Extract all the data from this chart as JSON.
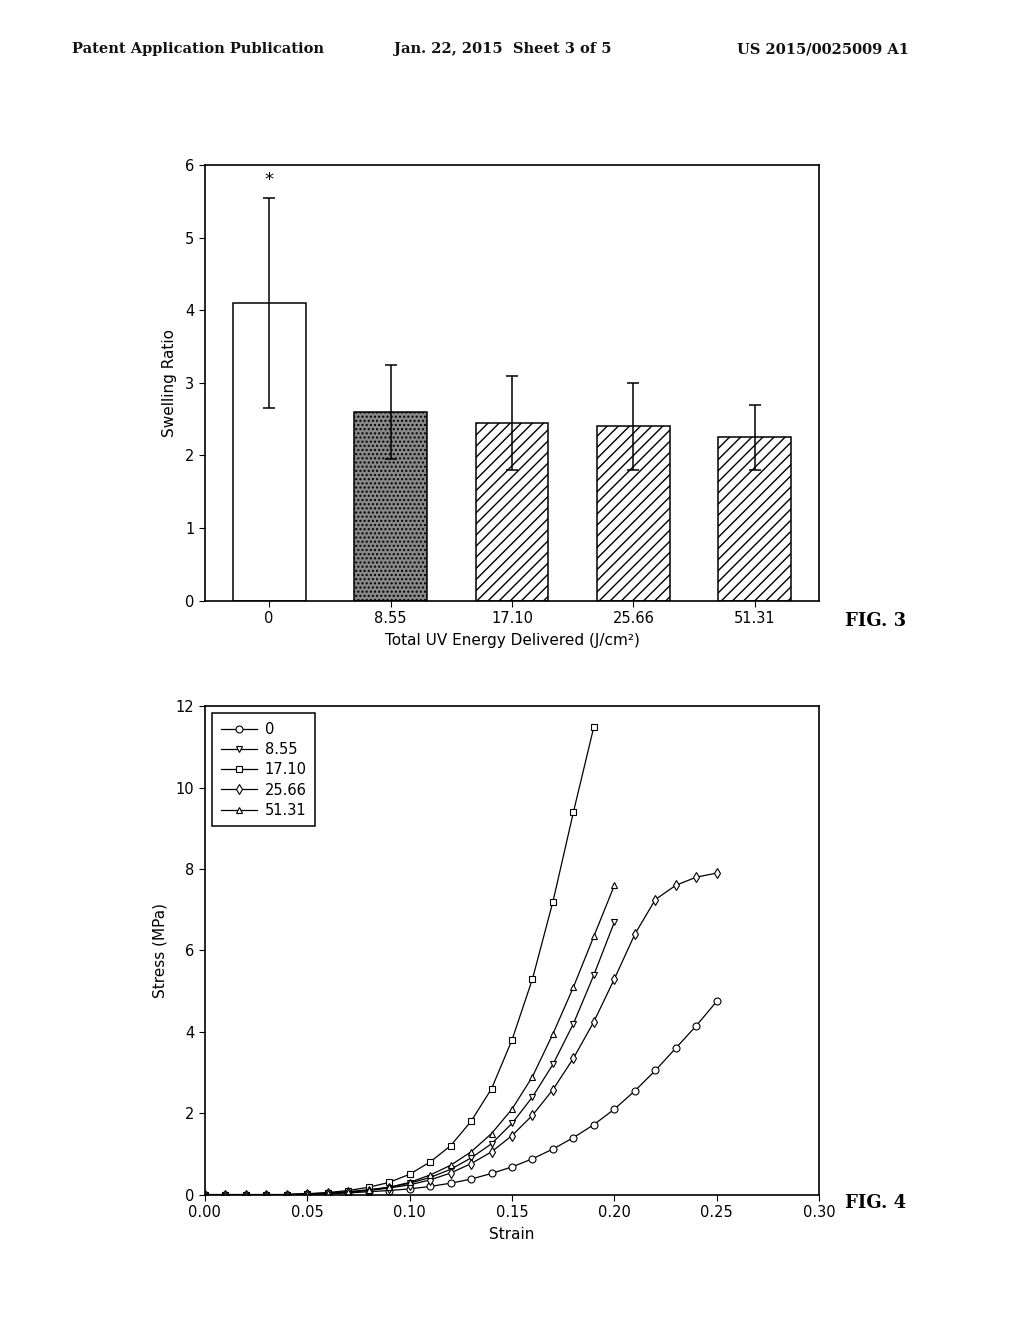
{
  "header_left": "Patent Application Publication",
  "header_center": "Jan. 22, 2015  Sheet 3 of 5",
  "header_right": "US 2015/0025009 A1",
  "fig3": {
    "title": "FIG. 3",
    "xlabel": "Total UV Energy Delivered (J/cm²)",
    "ylabel": "Swelling Ratio",
    "categories": [
      "0",
      "8.55",
      "17.10",
      "25.66",
      "51.31"
    ],
    "values": [
      4.1,
      2.6,
      2.45,
      2.4,
      2.25
    ],
    "errors": [
      1.45,
      0.65,
      0.65,
      0.6,
      0.45
    ],
    "ylim": [
      0,
      6
    ],
    "yticks": [
      0,
      1,
      2,
      3,
      4,
      5,
      6
    ],
    "bar_width": 0.6,
    "significance_star": "*"
  },
  "fig4": {
    "title": "FIG. 4",
    "xlabel": "Strain",
    "ylabel": "Stress (MPa)",
    "ylim": [
      0,
      12
    ],
    "xlim": [
      0.0,
      0.3
    ],
    "yticks": [
      0,
      2,
      4,
      6,
      8,
      10,
      12
    ],
    "xticks": [
      0.0,
      0.05,
      0.1,
      0.15,
      0.2,
      0.25,
      0.3
    ],
    "legend_labels": [
      "0",
      "8.55",
      "17.10",
      "25.66",
      "51.31"
    ],
    "series_0_label": "0",
    "series_0_strain": [
      0.0,
      0.01,
      0.02,
      0.03,
      0.04,
      0.05,
      0.06,
      0.07,
      0.08,
      0.09,
      0.1,
      0.11,
      0.12,
      0.13,
      0.14,
      0.15,
      0.16,
      0.17,
      0.18,
      0.19,
      0.2,
      0.21,
      0.22,
      0.23,
      0.24,
      0.25
    ],
    "series_0_stress": [
      0.0,
      0.0,
      0.0,
      0.0,
      0.0,
      0.01,
      0.02,
      0.04,
      0.07,
      0.1,
      0.14,
      0.2,
      0.28,
      0.38,
      0.52,
      0.68,
      0.88,
      1.12,
      1.4,
      1.72,
      2.1,
      2.55,
      3.05,
      3.6,
      4.15,
      4.75
    ],
    "series_1_label": "8.55",
    "series_1_strain": [
      0.0,
      0.01,
      0.02,
      0.03,
      0.04,
      0.05,
      0.06,
      0.07,
      0.08,
      0.09,
      0.1,
      0.11,
      0.12,
      0.13,
      0.14,
      0.15,
      0.16,
      0.17,
      0.18,
      0.19,
      0.2
    ],
    "series_1_stress": [
      0.0,
      0.0,
      0.0,
      0.0,
      0.0,
      0.02,
      0.04,
      0.07,
      0.12,
      0.18,
      0.28,
      0.42,
      0.62,
      0.9,
      1.25,
      1.75,
      2.4,
      3.2,
      4.2,
      5.4,
      6.7
    ],
    "series_2_label": "17.10",
    "series_2_strain": [
      0.0,
      0.01,
      0.02,
      0.03,
      0.04,
      0.05,
      0.06,
      0.07,
      0.08,
      0.09,
      0.1,
      0.11,
      0.12,
      0.13,
      0.14,
      0.15,
      0.16,
      0.17,
      0.18,
      0.19
    ],
    "series_2_stress": [
      0.0,
      0.0,
      0.0,
      0.0,
      0.0,
      0.02,
      0.05,
      0.1,
      0.18,
      0.3,
      0.5,
      0.8,
      1.2,
      1.8,
      2.6,
      3.8,
      5.3,
      7.2,
      9.4,
      11.5
    ],
    "series_3_label": "25.66",
    "series_3_strain": [
      0.0,
      0.01,
      0.02,
      0.03,
      0.04,
      0.05,
      0.06,
      0.07,
      0.08,
      0.09,
      0.1,
      0.11,
      0.12,
      0.13,
      0.14,
      0.15,
      0.16,
      0.17,
      0.18,
      0.19,
      0.2,
      0.21,
      0.22,
      0.23,
      0.24,
      0.25
    ],
    "series_3_stress": [
      0.0,
      0.0,
      0.0,
      0.0,
      0.0,
      0.01,
      0.03,
      0.06,
      0.1,
      0.16,
      0.24,
      0.36,
      0.53,
      0.76,
      1.05,
      1.45,
      1.95,
      2.58,
      3.35,
      4.25,
      5.3,
      6.4,
      7.25,
      7.6,
      7.8,
      7.9
    ],
    "series_4_label": "51.31",
    "series_4_strain": [
      0.0,
      0.01,
      0.02,
      0.03,
      0.04,
      0.05,
      0.06,
      0.07,
      0.08,
      0.09,
      0.1,
      0.11,
      0.12,
      0.13,
      0.14,
      0.15,
      0.16,
      0.17,
      0.18,
      0.19,
      0.2
    ],
    "series_4_stress": [
      0.0,
      0.0,
      0.0,
      0.0,
      0.0,
      0.01,
      0.03,
      0.06,
      0.11,
      0.18,
      0.3,
      0.48,
      0.72,
      1.05,
      1.5,
      2.1,
      2.9,
      3.95,
      5.1,
      6.35,
      7.6
    ]
  },
  "background_color": "#ffffff",
  "text_color": "#000000"
}
